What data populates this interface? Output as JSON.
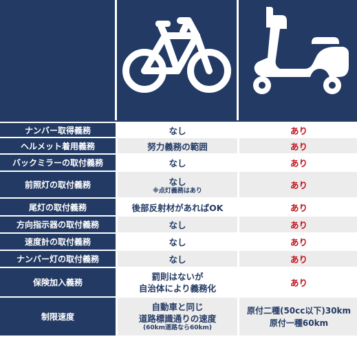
{
  "rows": [
    {
      "label": "ナンバー取得義務",
      "bicycle": "なし",
      "scooter": "あり"
    },
    {
      "label": "ヘルメット着用義務",
      "bicycle": "努力義務の範囲",
      "scooter": "あり"
    },
    {
      "label": "バックミラーの取付義務",
      "bicycle": "なし",
      "scooter": "あり"
    },
    {
      "label": "前照灯の取付義務",
      "bicycle": "なし",
      "bicycle_note": "※点灯義務はあり",
      "scooter": "あり"
    },
    {
      "label": "尾灯の取付義務",
      "bicycle": "後部反射材があればOK",
      "scooter": "あり"
    },
    {
      "label": "方向指示器の取付義務",
      "bicycle": "なし",
      "scooter": "あり"
    },
    {
      "label": "速度計の取付義務",
      "bicycle": "なし",
      "scooter": "あり"
    },
    {
      "label": "ナンバー灯の取付義務",
      "bicycle": "なし",
      "scooter": "あり"
    },
    {
      "label": "保険加入義務",
      "bicycle_line1": "罰則はないが",
      "bicycle_line2": "自治体により義務化",
      "scooter": "あり"
    },
    {
      "label": "制限速度",
      "bicycle_line1": "自動車と同じ",
      "bicycle_line2": "道路標識通りの速度",
      "bicycle_note": "(60km道路なら60km)",
      "scooter_line1": "原付二種(50cc以下)30km",
      "scooter_line2": "原付一種60km"
    }
  ],
  "icons": {
    "bicycle": "bicycle-icon",
    "scooter": "scooter-icon"
  },
  "colors": {
    "navy": "#233a64",
    "red": "#c0111a",
    "stripe": "#ececec"
  }
}
